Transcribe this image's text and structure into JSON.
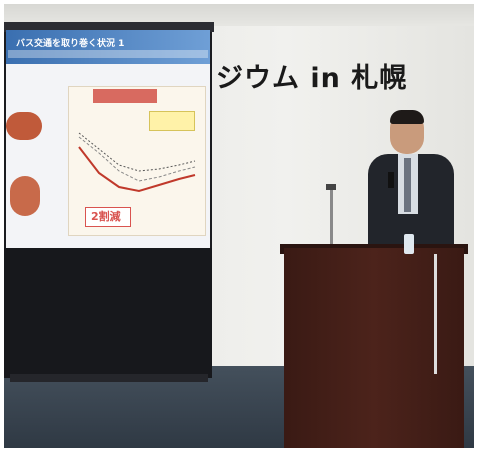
{
  "photo": {
    "banner_text": "ジウム in 札幌",
    "slide": {
      "title": "バス交通を取り巻く状況 1",
      "reduction_label": "2割減"
    }
  },
  "colors": {
    "slide_header": "#3a6fb0",
    "podium": "#4c231b",
    "suit": "#22252b",
    "floor": "#36414c"
  }
}
